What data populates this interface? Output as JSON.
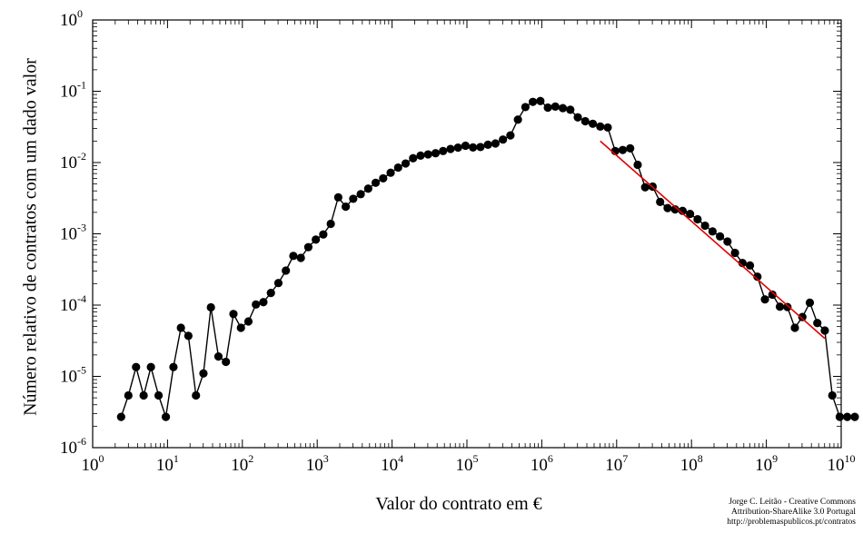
{
  "chart_data": {
    "type": "line",
    "title": "",
    "xlabel": "Valor do contrato em €",
    "ylabel": "Número relativo de contratos com um dado valor",
    "xscale": "log",
    "yscale": "log",
    "xlim": [
      1,
      10000000000
    ],
    "ylim": [
      1e-06,
      1
    ],
    "grid": false,
    "x_ticks": [
      {
        "base": "10",
        "exp": "0"
      },
      {
        "base": "10",
        "exp": "1"
      },
      {
        "base": "10",
        "exp": "2"
      },
      {
        "base": "10",
        "exp": "3"
      },
      {
        "base": "10",
        "exp": "4"
      },
      {
        "base": "10",
        "exp": "5"
      },
      {
        "base": "10",
        "exp": "6"
      },
      {
        "base": "10",
        "exp": "7"
      },
      {
        "base": "10",
        "exp": "8"
      },
      {
        "base": "10",
        "exp": "9"
      },
      {
        "base": "10",
        "exp": "10"
      }
    ],
    "y_ticks": [
      {
        "base": "10",
        "exp": "-6"
      },
      {
        "base": "10",
        "exp": "-5"
      },
      {
        "base": "10",
        "exp": "-4"
      },
      {
        "base": "10",
        "exp": "-3"
      },
      {
        "base": "10",
        "exp": "-2"
      },
      {
        "base": "10",
        "exp": "-1"
      },
      {
        "base": "10",
        "exp": "0"
      }
    ],
    "series": [
      {
        "color": "#000000",
        "marker": "circle",
        "points": [
          [
            2.4,
            2.7e-06
          ],
          [
            3.0,
            5.4e-06
          ],
          [
            3.8,
            1.35e-05
          ],
          [
            4.8,
            5.4e-06
          ],
          [
            6.0,
            1.35e-05
          ],
          [
            7.6,
            5.4e-06
          ],
          [
            9.5,
            2.7e-06
          ],
          [
            12.0,
            1.35e-05
          ],
          [
            15.1,
            4.8e-05
          ],
          [
            19.0,
            3.7e-05
          ],
          [
            24.0,
            5.4e-06
          ],
          [
            30.2,
            1.1e-05
          ],
          [
            38.0,
            9.3e-05
          ],
          [
            47.9,
            1.9e-05
          ],
          [
            60.3,
            1.6e-05
          ],
          [
            76.0,
            7.5e-05
          ],
          [
            95.7,
            4.8e-05
          ],
          [
            120.5,
            5.9e-05
          ],
          [
            151.7,
            0.000102
          ],
          [
            191.0,
            0.00011
          ],
          [
            240.5,
            0.000148
          ],
          [
            302.8,
            0.000204
          ],
          [
            381.2,
            0.000305
          ],
          [
            479.9,
            0.00049
          ],
          [
            604.1,
            0.00046
          ],
          [
            760.5,
            0.00065
          ],
          [
            957.4,
            0.00083
          ],
          [
            1205.3,
            0.00098
          ],
          [
            1517.4,
            0.00138
          ],
          [
            1910.3,
            0.00325
          ],
          [
            2404.9,
            0.0024
          ],
          [
            3027.6,
            0.0031
          ],
          [
            3811.5,
            0.0036
          ],
          [
            4798.4,
            0.0043
          ],
          [
            6040.8,
            0.0052
          ],
          [
            7604.9,
            0.006
          ],
          [
            9574.0,
            0.0072
          ],
          [
            12053,
            0.0085
          ],
          [
            15174,
            0.0097
          ],
          [
            19103,
            0.0115
          ],
          [
            24049,
            0.0125
          ],
          [
            30276,
            0.013
          ],
          [
            38115,
            0.0135
          ],
          [
            47984,
            0.0145
          ],
          [
            60408,
            0.0155
          ],
          [
            76049,
            0.0162
          ],
          [
            95740,
            0.0172
          ],
          [
            120530,
            0.0163
          ],
          [
            151740,
            0.0165
          ],
          [
            191030,
            0.0178
          ],
          [
            240490,
            0.0185
          ],
          [
            302760,
            0.021
          ],
          [
            381150,
            0.024
          ],
          [
            479840,
            0.04
          ],
          [
            604080,
            0.06
          ],
          [
            760490,
            0.071
          ],
          [
            957400,
            0.073
          ],
          [
            1205300,
            0.059
          ],
          [
            1517400,
            0.061
          ],
          [
            1910300,
            0.058
          ],
          [
            2404900,
            0.055
          ],
          [
            3027600,
            0.043
          ],
          [
            3811500,
            0.038
          ],
          [
            4798400,
            0.035
          ],
          [
            6040800,
            0.032
          ],
          [
            7604900,
            0.031
          ],
          [
            9574000,
            0.0145
          ],
          [
            12053000,
            0.015
          ],
          [
            15174000,
            0.0158
          ],
          [
            19103000,
            0.0093
          ],
          [
            24049000,
            0.0045
          ],
          [
            30276000,
            0.0046
          ],
          [
            38115000,
            0.0028
          ],
          [
            47984000,
            0.0023
          ],
          [
            60408000,
            0.0022
          ],
          [
            76049000,
            0.0021
          ],
          [
            95740000,
            0.0019
          ],
          [
            120530000,
            0.0016
          ],
          [
            151740000,
            0.0013
          ],
          [
            191030000,
            0.00108
          ],
          [
            240490000,
            0.00092
          ],
          [
            302760000,
            0.00078
          ],
          [
            381150000,
            0.00054
          ],
          [
            479840000,
            0.00039
          ],
          [
            604080000,
            0.00036
          ],
          [
            760490000,
            0.00025
          ],
          [
            957400000,
            0.00012
          ],
          [
            1205300000,
            0.00014
          ],
          [
            1517400000,
            9.5e-05
          ],
          [
            1910300000,
            9.4e-05
          ],
          [
            2404900000,
            4.8e-05
          ],
          [
            3027600000,
            6.8e-05
          ],
          [
            3811500000,
            0.000108
          ],
          [
            4798400000,
            5.6e-05
          ],
          [
            6040800000,
            4.4e-05
          ],
          [
            7604900000,
            5.4e-06
          ],
          [
            9574000000,
            2.7e-06
          ],
          [
            12053000000,
            2.7e-06
          ],
          [
            15174000000,
            2.7e-06
          ]
        ]
      }
    ],
    "fit_line": {
      "color": "#e00000",
      "x": [
        6040800,
        6040800000
      ],
      "y": [
        0.02,
        3.4e-05
      ]
    }
  },
  "credit": {
    "line1": "Jorge C. Leitão - Creative Commons",
    "line2": "Attribution-ShareAlike 3.0 Portugal",
    "line3": "http://problemaspublicos.pt/contratos"
  }
}
